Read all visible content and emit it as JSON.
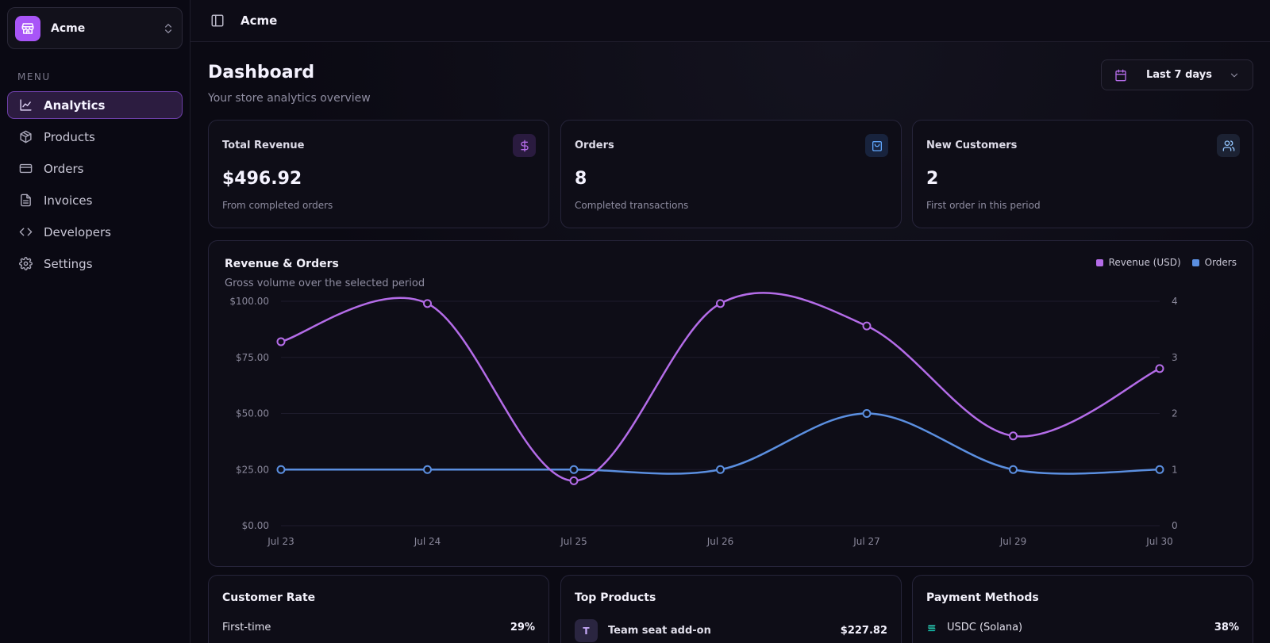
{
  "sidebar": {
    "store_name": "Acme",
    "menu_label": "MENU",
    "items": [
      {
        "label": "Analytics",
        "icon": "chart-line-icon",
        "active": true
      },
      {
        "label": "Products",
        "icon": "package-icon"
      },
      {
        "label": "Orders",
        "icon": "credit-card-icon"
      },
      {
        "label": "Invoices",
        "icon": "file-text-icon"
      },
      {
        "label": "Developers",
        "icon": "code-icon"
      },
      {
        "label": "Settings",
        "icon": "gear-icon"
      }
    ]
  },
  "topbar": {
    "title": "Acme"
  },
  "page": {
    "title": "Dashboard",
    "subtitle": "Your store analytics overview",
    "range_label": "Last 7 days"
  },
  "stats": [
    {
      "label": "Total Revenue",
      "value": "$496.92",
      "desc": "From completed orders",
      "icon": "dollar-icon",
      "accent": "#a855f7"
    },
    {
      "label": "Orders",
      "value": "8",
      "desc": "Completed transactions",
      "icon": "shopping-bag-icon",
      "accent": "#60a5fa"
    },
    {
      "label": "New Customers",
      "value": "2",
      "desc": "First order in this period",
      "icon": "users-icon",
      "accent": "#93c5fd"
    }
  ],
  "chart": {
    "title": "Revenue & Orders",
    "subtitle": "Gross volume over the selected period",
    "legend": [
      "Revenue (USD)",
      "Orders"
    ]
  },
  "chart_data": {
    "type": "line",
    "categories": [
      "Jul 23",
      "Jul 24",
      "Jul 25",
      "Jul 26",
      "Jul 27",
      "Jul 29",
      "Jul 30"
    ],
    "series": [
      {
        "name": "Revenue (USD)",
        "axis": "left",
        "color": "#b46ce8",
        "values": [
          82,
          99,
          20,
          99,
          89,
          40,
          70
        ]
      },
      {
        "name": "Orders",
        "axis": "right",
        "color": "#5b8fe0",
        "values": [
          1,
          1,
          1,
          1,
          2,
          1,
          1
        ]
      }
    ],
    "y_left_ticks": [
      "$100.00",
      "$75.00",
      "$50.00",
      "$25.00",
      "$0.00"
    ],
    "y_right_ticks": [
      "4",
      "3",
      "2",
      "1",
      "0"
    ],
    "ylim_left": [
      0,
      100
    ],
    "ylim_right": [
      0,
      4
    ],
    "grid": true,
    "legend_position": "top-right"
  },
  "customer_rate": {
    "title": "Customer Rate",
    "rows": [
      {
        "label": "First-time",
        "value": "29%"
      }
    ]
  },
  "top_products": {
    "title": "Top Products",
    "rows": [
      {
        "avatar": "T",
        "label": "Team seat add-on",
        "value": "$227.82"
      }
    ]
  },
  "payment_methods": {
    "title": "Payment Methods",
    "rows": [
      {
        "label": "USDC (Solana)",
        "value": "38%",
        "icon": "solana-icon"
      }
    ]
  },
  "colors": {
    "accent": "#a855f7",
    "orders": "#5b8fe0",
    "revenue": "#b46ce8",
    "background": "#0b0a13"
  }
}
